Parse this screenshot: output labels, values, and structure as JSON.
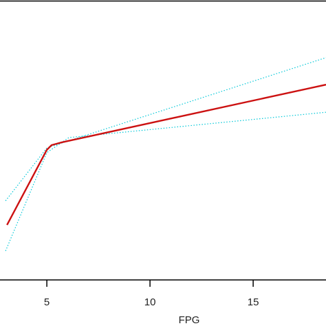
{
  "chart_data": {
    "type": "line",
    "xlabel": "FPG",
    "xlim": [
      2.73,
      18.53
    ],
    "xticks": [
      5,
      10,
      15
    ],
    "ylim": [
      0,
      100
    ],
    "series": [
      {
        "color": "#00c8d8",
        "dash": true,
        "x": [
          3.0,
          5.0,
          18.53
        ],
        "values": [
          28.4,
          47.4,
          79.8
        ]
      },
      {
        "color": "#00c8d8",
        "dash": true,
        "x": [
          3.0,
          5.0,
          6.07,
          18.53
        ],
        "values": [
          10.4,
          45.7,
          51.1,
          60.2
        ]
      },
      {
        "color": "#cc1111",
        "dash": false,
        "x": [
          3.07,
          5.0,
          5.23,
          5.73,
          18.53
        ],
        "values": [
          19.75,
          46.7,
          48.4,
          49.4,
          70.1
        ]
      }
    ]
  }
}
